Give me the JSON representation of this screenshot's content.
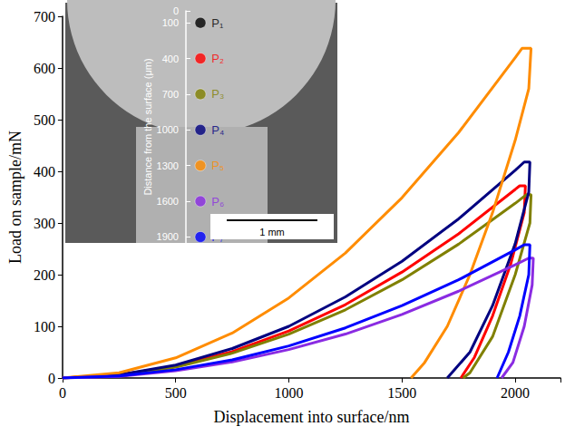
{
  "chart_data": {
    "type": "line",
    "x_label": "Displacement into surface/nm",
    "y_label": "Load on sample/mN",
    "xlim": [
      0,
      2200
    ],
    "xticks": [
      0,
      500,
      1000,
      1500,
      2000
    ],
    "ylim": [
      0,
      700
    ],
    "yticks": [
      0,
      100,
      200,
      300,
      400,
      500,
      600,
      700
    ],
    "grid": false,
    "series": [
      {
        "name": "P₂",
        "color": "#ff0000",
        "x": [
          0,
          250,
          500,
          750,
          1000,
          1250,
          1500,
          1750,
          2000,
          2020,
          2045,
          2040,
          1980,
          1900,
          1820,
          1760
        ],
        "values": [
          0,
          6,
          23,
          51,
          91,
          142,
          205,
          279,
          365,
          372,
          372,
          320,
          220,
          120,
          40,
          0
        ]
      },
      {
        "name": "P₃",
        "color": "#808000",
        "x": [
          0,
          250,
          500,
          750,
          1000,
          1250,
          1500,
          1750,
          2000,
          2050,
          2070,
          2065,
          2000,
          1900,
          1800,
          1770
        ],
        "values": [
          0,
          5,
          21,
          48,
          85,
          132,
          190,
          259,
          338,
          355,
          355,
          300,
          200,
          80,
          10,
          0
        ]
      },
      {
        "name": "P₄",
        "color": "#000080",
        "x": [
          0,
          250,
          500,
          750,
          1000,
          1250,
          1500,
          1750,
          2000,
          2040,
          2065,
          2060,
          2000,
          1900,
          1800,
          1700
        ],
        "values": [
          0,
          6,
          25,
          57,
          100,
          157,
          226,
          308,
          402,
          418,
          418,
          360,
          260,
          140,
          50,
          0
        ]
      },
      {
        "name": "P₅",
        "color": "#ff8c00",
        "x": [
          0,
          250,
          500,
          750,
          1000,
          1250,
          1500,
          1750,
          2000,
          2030,
          2070,
          2060,
          2000,
          1900,
          1800,
          1700,
          1600,
          1540
        ],
        "values": [
          0,
          10,
          39,
          87,
          155,
          242,
          349,
          475,
          620,
          638,
          638,
          560,
          460,
          320,
          200,
          100,
          30,
          0
        ]
      },
      {
        "name": "P₆",
        "color": "#8a2be2",
        "x": [
          0,
          250,
          500,
          750,
          1000,
          1250,
          1500,
          1750,
          2000,
          2060,
          2080,
          2075,
          2040,
          1990,
          1940
        ],
        "values": [
          0,
          3,
          14,
          31,
          55,
          85,
          123,
          168,
          219,
          232,
          232,
          180,
          100,
          30,
          0
        ]
      },
      {
        "name": "P₇",
        "color": "#0000ff",
        "x": [
          0,
          250,
          500,
          750,
          1000,
          1250,
          1500,
          1750,
          2000,
          2040,
          2065,
          2060,
          2020,
          1970,
          1920
        ],
        "values": [
          0,
          4,
          16,
          35,
          62,
          97,
          140,
          190,
          248,
          258,
          258,
          200,
          120,
          50,
          0
        ]
      }
    ]
  },
  "inset": {
    "y_label": "Distance from the surface (μm)",
    "ylim": [
      0,
      1950
    ],
    "yticks": [
      0,
      100,
      400,
      700,
      1000,
      1300,
      1600,
      1900
    ],
    "points": [
      {
        "name": "P₁",
        "color": "#000000",
        "depth": 100
      },
      {
        "name": "P₂",
        "color": "#ff0000",
        "depth": 400
      },
      {
        "name": "P₃",
        "color": "#808000",
        "depth": 700
      },
      {
        "name": "P₄",
        "color": "#000080",
        "depth": 1000
      },
      {
        "name": "P₅",
        "color": "#ff8c00",
        "depth": 1300
      },
      {
        "name": "P₆",
        "color": "#8a2be2",
        "depth": 1600
      },
      {
        "name": "P₇",
        "color": "#0000ff",
        "depth": 1900
      }
    ],
    "scale_bar": "1 mm"
  }
}
